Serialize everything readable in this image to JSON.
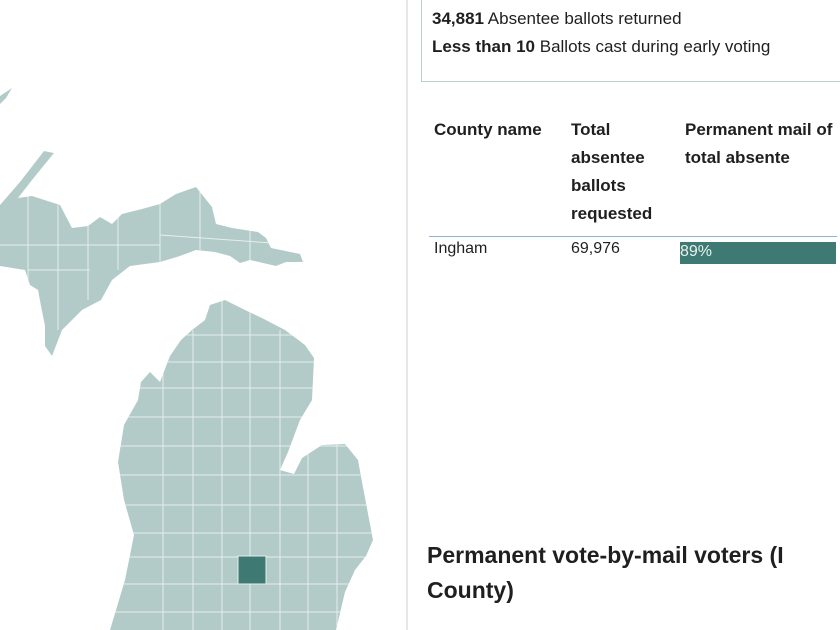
{
  "summary": {
    "returned_value": "34,881",
    "returned_label": "Absentee ballots returned",
    "early_value": "Less than 10",
    "early_label": "Ballots cast during early voting"
  },
  "table": {
    "headers": [
      "County name",
      "Total absentee ballots requested",
      "Permanent mail of total absente"
    ],
    "rows": [
      {
        "county": "Ingham",
        "requested": "69,976",
        "permanent_pct": "89%",
        "permanent_fraction": 0.89
      }
    ]
  },
  "map": {
    "highlighted_county": "Ingham",
    "base_color": "#b3cbc8",
    "highlight_color": "#3e7a73"
  },
  "section_title": "Permanent vote-by-mail voters  (I\nCounty)"
}
